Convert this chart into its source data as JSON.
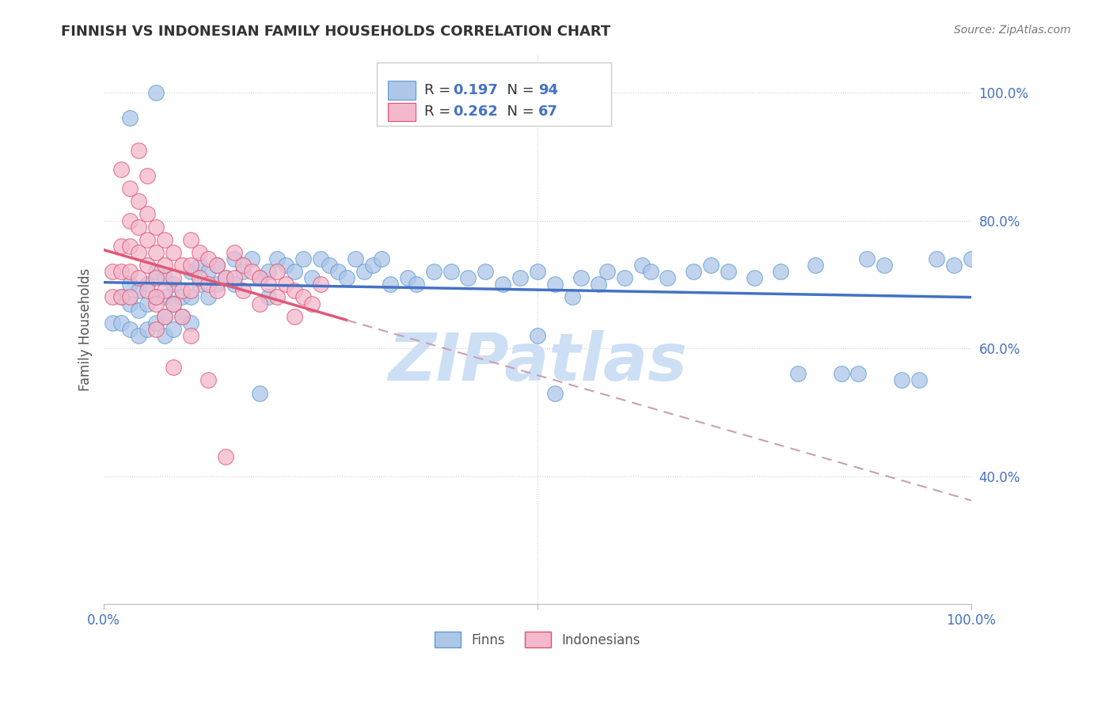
{
  "title": "FINNISH VS INDONESIAN FAMILY HOUSEHOLDS CORRELATION CHART",
  "source": "Source: ZipAtlas.com",
  "ylabel": "Family Households",
  "xlim": [
    0.0,
    1.0
  ],
  "ylim": [
    0.2,
    1.06
  ],
  "yticks": [
    0.4,
    0.6,
    0.8,
    1.0
  ],
  "ytick_labels": [
    "40.0%",
    "60.0%",
    "80.0%",
    "100.0%"
  ],
  "finn_color": "#aec6e8",
  "finn_edge": "#5b9bd5",
  "indo_color": "#f4b8cc",
  "indo_edge": "#e05070",
  "trend_finn_color": "#4472c4",
  "trend_indo_color": "#e05878",
  "trend_indo_dash_color": "#c8a0b0",
  "R_finn": 0.197,
  "N_finn": 94,
  "R_indo": 0.262,
  "N_indo": 67,
  "background_color": "#ffffff",
  "grid_color": "#cccccc",
  "watermark_color": "#ccdff5",
  "finn_x": [
    0.01,
    0.02,
    0.02,
    0.03,
    0.03,
    0.03,
    0.04,
    0.04,
    0.04,
    0.05,
    0.05,
    0.05,
    0.06,
    0.06,
    0.06,
    0.07,
    0.07,
    0.07,
    0.07,
    0.08,
    0.08,
    0.08,
    0.09,
    0.09,
    0.1,
    0.1,
    0.1,
    0.11,
    0.11,
    0.12,
    0.12,
    0.13,
    0.13,
    0.14,
    0.15,
    0.15,
    0.16,
    0.17,
    0.18,
    0.19,
    0.19,
    0.2,
    0.21,
    0.22,
    0.23,
    0.24,
    0.25,
    0.26,
    0.27,
    0.28,
    0.29,
    0.3,
    0.31,
    0.32,
    0.33,
    0.35,
    0.36,
    0.38,
    0.4,
    0.42,
    0.44,
    0.46,
    0.48,
    0.5,
    0.5,
    0.52,
    0.54,
    0.55,
    0.57,
    0.58,
    0.6,
    0.62,
    0.63,
    0.65,
    0.68,
    0.7,
    0.72,
    0.75,
    0.78,
    0.8,
    0.82,
    0.85,
    0.87,
    0.88,
    0.9,
    0.92,
    0.94,
    0.96,
    0.98,
    1.0,
    0.18,
    0.52,
    0.03,
    0.06
  ],
  "finn_y": [
    0.64,
    0.68,
    0.64,
    0.7,
    0.67,
    0.63,
    0.69,
    0.66,
    0.62,
    0.7,
    0.67,
    0.63,
    0.72,
    0.68,
    0.64,
    0.71,
    0.68,
    0.65,
    0.62,
    0.7,
    0.67,
    0.63,
    0.68,
    0.65,
    0.72,
    0.68,
    0.64,
    0.73,
    0.7,
    0.72,
    0.68,
    0.73,
    0.7,
    0.71,
    0.74,
    0.7,
    0.72,
    0.74,
    0.71,
    0.72,
    0.68,
    0.74,
    0.73,
    0.72,
    0.74,
    0.71,
    0.74,
    0.73,
    0.72,
    0.71,
    0.74,
    0.72,
    0.73,
    0.74,
    0.7,
    0.71,
    0.7,
    0.72,
    0.72,
    0.71,
    0.72,
    0.7,
    0.71,
    0.62,
    0.72,
    0.7,
    0.68,
    0.71,
    0.7,
    0.72,
    0.71,
    0.73,
    0.72,
    0.71,
    0.72,
    0.73,
    0.72,
    0.71,
    0.72,
    0.56,
    0.73,
    0.56,
    0.56,
    0.74,
    0.73,
    0.55,
    0.55,
    0.74,
    0.73,
    0.74,
    0.53,
    0.53,
    0.96,
    1.0
  ],
  "indo_x": [
    0.01,
    0.01,
    0.02,
    0.02,
    0.02,
    0.03,
    0.03,
    0.03,
    0.03,
    0.04,
    0.04,
    0.04,
    0.04,
    0.05,
    0.05,
    0.05,
    0.05,
    0.06,
    0.06,
    0.06,
    0.06,
    0.06,
    0.07,
    0.07,
    0.07,
    0.07,
    0.08,
    0.08,
    0.08,
    0.09,
    0.09,
    0.09,
    0.1,
    0.1,
    0.1,
    0.11,
    0.11,
    0.12,
    0.12,
    0.13,
    0.13,
    0.14,
    0.15,
    0.15,
    0.16,
    0.16,
    0.17,
    0.18,
    0.18,
    0.19,
    0.2,
    0.2,
    0.21,
    0.22,
    0.22,
    0.23,
    0.24,
    0.25,
    0.02,
    0.03,
    0.04,
    0.05,
    0.06,
    0.08,
    0.1,
    0.12,
    0.14
  ],
  "indo_y": [
    0.72,
    0.68,
    0.76,
    0.72,
    0.68,
    0.8,
    0.76,
    0.72,
    0.68,
    0.83,
    0.79,
    0.75,
    0.71,
    0.81,
    0.77,
    0.73,
    0.69,
    0.79,
    0.75,
    0.71,
    0.67,
    0.63,
    0.77,
    0.73,
    0.69,
    0.65,
    0.75,
    0.71,
    0.67,
    0.73,
    0.69,
    0.65,
    0.77,
    0.73,
    0.69,
    0.75,
    0.71,
    0.74,
    0.7,
    0.73,
    0.69,
    0.71,
    0.75,
    0.71,
    0.73,
    0.69,
    0.72,
    0.71,
    0.67,
    0.7,
    0.72,
    0.68,
    0.7,
    0.69,
    0.65,
    0.68,
    0.67,
    0.7,
    0.88,
    0.85,
    0.91,
    0.87,
    0.68,
    0.57,
    0.62,
    0.55,
    0.43
  ]
}
